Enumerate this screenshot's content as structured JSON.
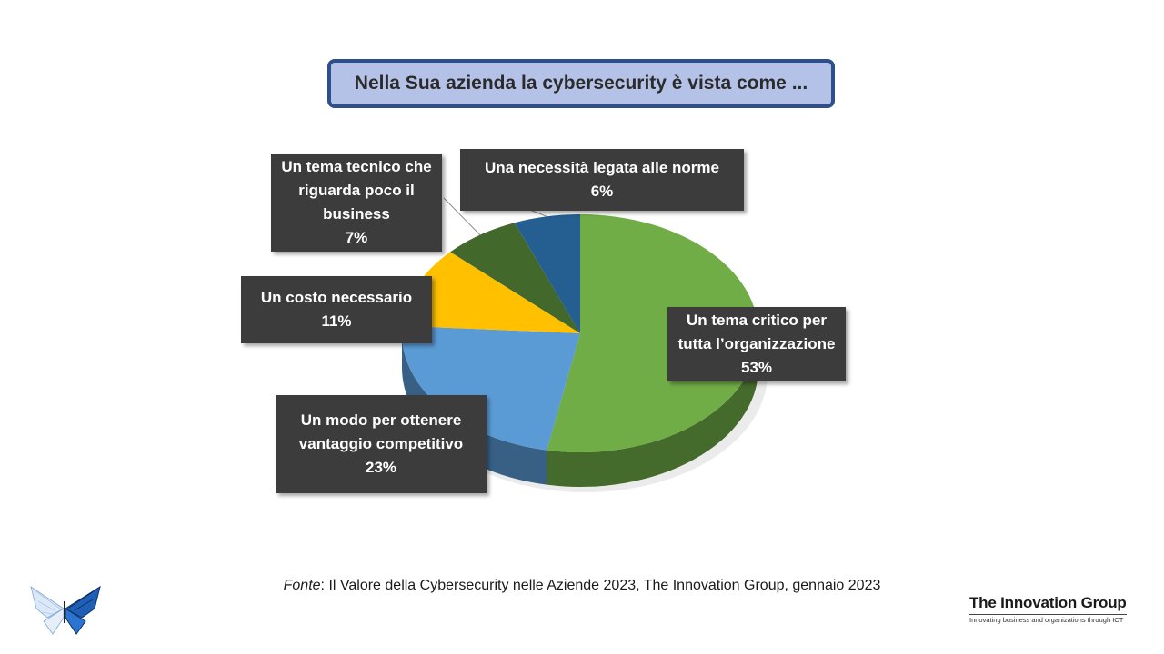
{
  "header": {
    "title": "Nella Sua azienda la cybersecurity è vista come ..."
  },
  "chart_data": {
    "type": "pie",
    "title": "Nella Sua azienda la cybersecurity è vista come ...",
    "slices": [
      {
        "label_lines": [
          "Un tema critico per",
          "tutta l’organizzazione"
        ],
        "value": 53,
        "value_label": "53%",
        "color": "#70ad47"
      },
      {
        "label_lines": [
          "Un modo per ottenere",
          "vantaggio competitivo"
        ],
        "value": 23,
        "value_label": "23%",
        "color": "#5b9bd5"
      },
      {
        "label_lines": [
          "Un costo necessario"
        ],
        "value": 11,
        "value_label": "11%",
        "color": "#ffc000"
      },
      {
        "label_lines": [
          "Un tema tecnico che",
          "riguarda poco il",
          "business"
        ],
        "value": 7,
        "value_label": "7%",
        "color": "#43682b"
      },
      {
        "label_lines": [
          "Una necessità legata alle norme"
        ],
        "value": 6,
        "value_label": "6%",
        "color": "#255e91"
      }
    ]
  },
  "footer": {
    "source_prefix": "Fonte",
    "source_text": ": Il Valore della Cybersecurity nelle Aziende 2023, The Innovation Group, gennaio 2023"
  },
  "brand": {
    "name": "The Innovation Group",
    "tagline": "Innovating business and organizations through ICT",
    "icon": "butterfly-icon"
  }
}
